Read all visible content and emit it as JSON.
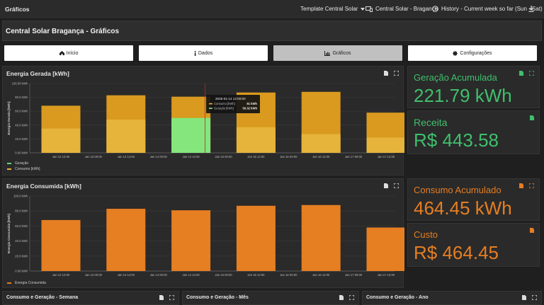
{
  "app": {
    "page_title": "Gráficos",
    "template_select": "Template Central Solar",
    "device_select": "Central Solar - Bragança",
    "time_range": "History - Current week so far (Sun - Sat)"
  },
  "dashboard": {
    "title": "Central Solar Bragança - Gráficos",
    "nav": [
      {
        "label": "Início",
        "icon": "home-icon"
      },
      {
        "label": "Dados",
        "icon": "info-icon"
      },
      {
        "label": "Gráficos",
        "icon": "bar-chart-icon"
      },
      {
        "label": "Configurações",
        "icon": "gear-icon"
      }
    ],
    "active_nav": "Gráficos"
  },
  "panels": {
    "energy_generated": {
      "title": "Energia Gerada [kWh]",
      "legend": [
        "Geração",
        "Consumo [kWh]"
      ],
      "tooltip": {
        "date": "2025-01-14 12:00:00",
        "rows": [
          {
            "label": "Consumo [kWh]",
            "value": "81 kWh"
          },
          {
            "label": "Geração [kWh]",
            "value": "50.32 kWh"
          }
        ]
      }
    },
    "energy_consumed": {
      "title": "Energia Consumida [kWh]",
      "legend": [
        "Energia Consumida"
      ]
    },
    "stats": {
      "generation_label": "Geração Acumulada",
      "generation_value": "221.79 kWh",
      "revenue_label": "Receita",
      "revenue_value": "R$ 443.58",
      "consumption_label": "Consumo Acumulado",
      "consumption_value": "464.45 kWh",
      "cost_label": "Custo",
      "cost_value": "R$ 464.45"
    },
    "bottom": [
      "Consumo e Geração - Semana",
      "Consumo e Geração - Mês",
      "Consumo e Geração - Ano"
    ]
  },
  "colors": {
    "generation": "#5fd87a",
    "consumption": "#e67e22",
    "generation_overlay": "#e6b43a"
  },
  "chart_data": [
    {
      "type": "bar",
      "title": "Energia Gerada [kWh]",
      "ylabel": "Energia Gerada [kWh]",
      "ylim": [
        0,
        100
      ],
      "yticks": [
        "0.00 kWh",
        "20.0 kWh",
        "40.0 kWh",
        "60.0 kWh",
        "80.0 kWh",
        "100.00 kWh"
      ],
      "xticks": [
        "Jan 12 12:00",
        "Jan 13 00:00",
        "Jan 13 12:00",
        "Jan 14 00:00",
        "Jan 14 12:00",
        "Jan 15 00:00",
        "Jan 15 12:00",
        "Jan 16 00:00",
        "Jan 16 12:00",
        "Jan 17 00:00",
        "Jan 17 12:00"
      ],
      "categories": [
        "Jan 12 12:00",
        "Jan 13 12:00",
        "Jan 14 12:00",
        "Jan 15 12:00",
        "Jan 16 12:00",
        "Jan 17 12:00"
      ],
      "series": [
        {
          "name": "Geração",
          "values": [
            35,
            48,
            50.32,
            37,
            27,
            22
          ]
        },
        {
          "name": "Consumo [kWh]",
          "values": [
            68,
            83,
            81,
            87,
            88,
            58
          ]
        }
      ],
      "highlight_index": 2,
      "legend_position": "bottom-left"
    },
    {
      "type": "bar",
      "title": "Energia Consumida [kWh]",
      "ylabel": "Energia Consumida [kWh]",
      "ylim": [
        0,
        100
      ],
      "yticks": [
        "0.00 kWh",
        "20.0 kWh",
        "40.0 kWh",
        "60.0 kWh",
        "80.0 kWh",
        "100.0 kWh"
      ],
      "xticks": [
        "Jan 12 12:00",
        "Jan 13 00:00",
        "Jan 13 12:00",
        "Jan 14 00:00",
        "Jan 14 12:00",
        "Jan 15 00:00",
        "Jan 15 12:00",
        "Jan 16 00:00",
        "Jan 16 12:00",
        "Jan 17 00:00",
        "Jan 17 12:00"
      ],
      "categories": [
        "Jan 12 12:00",
        "Jan 13 12:00",
        "Jan 14 12:00",
        "Jan 15 12:00",
        "Jan 16 12:00",
        "Jan 17 12:00"
      ],
      "series": [
        {
          "name": "Energia Consumida",
          "values": [
            68,
            83,
            81,
            87,
            88,
            58
          ]
        }
      ],
      "legend_position": "bottom-left"
    }
  ]
}
